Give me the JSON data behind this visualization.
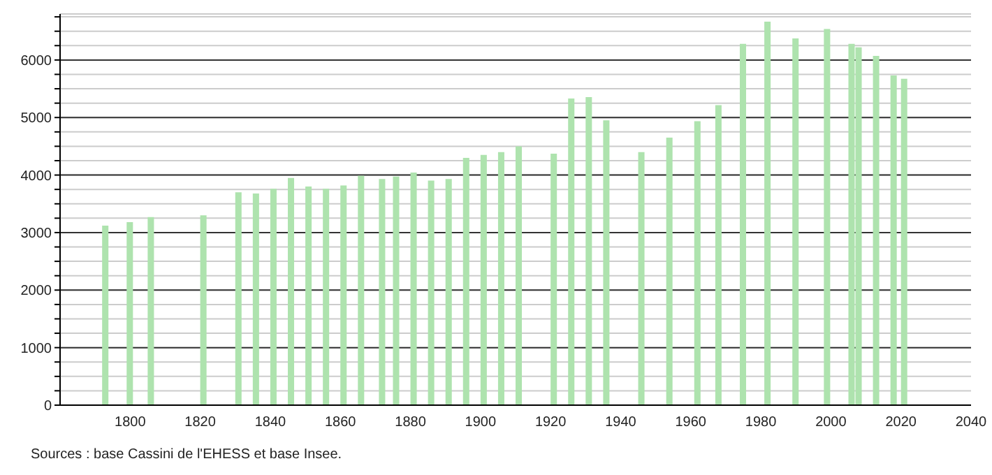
{
  "chart_data": {
    "type": "bar",
    "x": [
      1793,
      1800,
      1806,
      1821,
      1831,
      1836,
      1841,
      1846,
      1851,
      1856,
      1861,
      1866,
      1872,
      1876,
      1881,
      1886,
      1891,
      1896,
      1901,
      1906,
      1911,
      1921,
      1926,
      1931,
      1936,
      1946,
      1954,
      1962,
      1968,
      1975,
      1982,
      1990,
      1999,
      2006,
      2008,
      2013,
      2018,
      2021
    ],
    "values": [
      3120,
      3180,
      3270,
      3300,
      3700,
      3680,
      3760,
      3950,
      3800,
      3760,
      3820,
      3990,
      3930,
      3975,
      4045,
      3905,
      3930,
      4300,
      4350,
      4400,
      4500,
      4370,
      5330,
      5355,
      4950,
      4400,
      4650,
      4935,
      5215,
      6280,
      6665,
      6375,
      6540,
      6280,
      6220,
      6070,
      5730,
      5675
    ],
    "color": "#aee3ae",
    "xlim": [
      1780,
      2040
    ],
    "xticks": [
      1800,
      1820,
      1840,
      1860,
      1880,
      1900,
      1920,
      1940,
      1960,
      1980,
      2000,
      2020,
      2040
    ],
    "ylim": [
      0,
      6800
    ],
    "yticks": [
      0,
      {
        "value": 250,
        "label": null
      },
      {
        "value": 500,
        "label": null
      },
      {
        "value": 750,
        "label": null
      },
      1000,
      {
        "value": 1250,
        "label": null
      },
      {
        "value": 1500,
        "label": null
      },
      {
        "value": 1750,
        "label": null
      },
      2000,
      {
        "value": 2250,
        "label": null
      },
      {
        "value": 2500,
        "label": null
      },
      {
        "value": 2750,
        "label": null
      },
      3000,
      {
        "value": 3250,
        "label": null
      },
      {
        "value": 3500,
        "label": null
      },
      {
        "value": 3750,
        "label": null
      },
      4000,
      {
        "value": 4250,
        "label": null
      },
      {
        "value": 4500,
        "label": null
      },
      {
        "value": 4750,
        "label": null
      },
      5000,
      {
        "value": 5250,
        "label": null
      },
      {
        "value": 5500,
        "label": null
      },
      {
        "value": 5750,
        "label": null
      },
      6000,
      {
        "value": 6250,
        "label": null
      },
      {
        "value": 6500,
        "label": null
      },
      {
        "value": 6750,
        "label": null
      }
    ],
    "grid": "y",
    "annotations": [
      "Sources : base Cassini de l'EHESS et base Insee."
    ]
  }
}
